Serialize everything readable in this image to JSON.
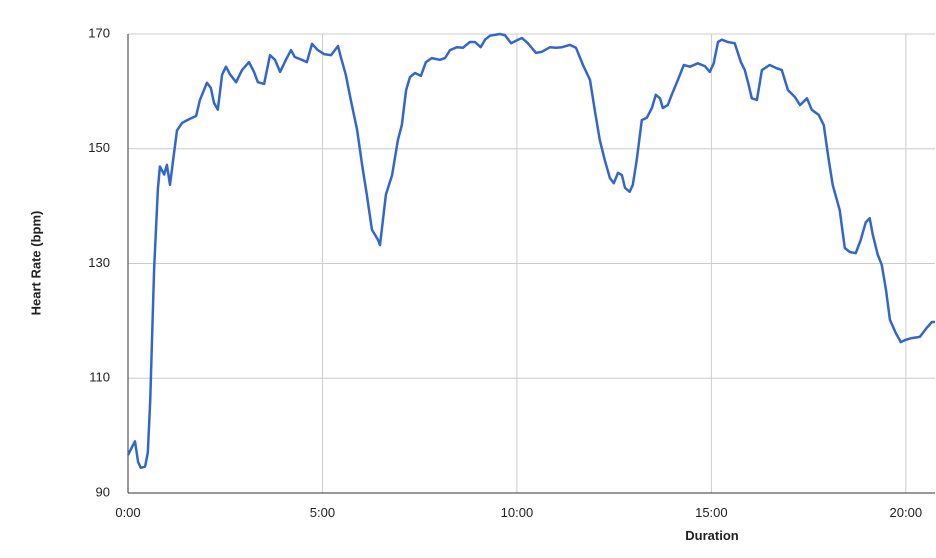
{
  "chart_data": {
    "type": "line",
    "x_label": "Duration",
    "y_label": "Heart Rate (bpm)",
    "color": "#3366cc",
    "grid": true,
    "xlim": [
      0,
      20.75
    ],
    "ylim": [
      90,
      170
    ],
    "xticks": [
      {
        "value": 0,
        "label": "0:00"
      },
      {
        "value": 5,
        "label": "5:00"
      },
      {
        "value": 10,
        "label": "10:00"
      },
      {
        "value": 15,
        "label": "15:00"
      },
      {
        "value": 20,
        "label": "20:00"
      }
    ],
    "yticks": [
      90,
      110,
      130,
      150,
      170
    ],
    "x": [
      0,
      0.13,
      0.18,
      0.26,
      0.33,
      0.44,
      0.51,
      0.57,
      0.67,
      0.77,
      0.82,
      0.93,
      1.0,
      1.08,
      1.16,
      1.26,
      1.39,
      1.59,
      1.75,
      1.85,
      2.03,
      2.13,
      2.21,
      2.31,
      2.42,
      2.52,
      2.62,
      2.78,
      2.93,
      3.11,
      3.24,
      3.34,
      3.5,
      3.65,
      3.78,
      3.91,
      4.06,
      4.19,
      4.29,
      4.47,
      4.6,
      4.73,
      4.88,
      5.04,
      5.22,
      5.4,
      5.48,
      5.6,
      5.73,
      5.89,
      6.02,
      6.14,
      6.27,
      6.43,
      6.48,
      6.63,
      6.79,
      6.94,
      7.04,
      7.15,
      7.25,
      7.38,
      7.53,
      7.66,
      7.81,
      8.02,
      8.15,
      8.28,
      8.46,
      8.61,
      8.79,
      8.92,
      9.07,
      9.18,
      9.31,
      9.56,
      9.69,
      9.85,
      10.03,
      10.13,
      10.28,
      10.49,
      10.64,
      10.85,
      11.0,
      11.16,
      11.36,
      11.52,
      11.7,
      11.88,
      12.0,
      12.13,
      12.26,
      12.39,
      12.49,
      12.6,
      12.7,
      12.78,
      12.9,
      12.98,
      13.08,
      13.21,
      13.34,
      13.47,
      13.57,
      13.68,
      13.75,
      13.88,
      13.98,
      14.14,
      14.29,
      14.45,
      14.65,
      14.83,
      14.96,
      15.06,
      15.17,
      15.27,
      15.42,
      15.6,
      15.76,
      15.86,
      15.96,
      16.04,
      16.17,
      16.3,
      16.5,
      16.66,
      16.81,
      16.97,
      17.15,
      17.28,
      17.46,
      17.58,
      17.76,
      17.89,
      18.0,
      18.12,
      18.3,
      18.43,
      18.56,
      18.71,
      18.84,
      18.97,
      19.07,
      19.15,
      19.28,
      19.38,
      19.49,
      19.59,
      19.74,
      19.87,
      20.0,
      20.15,
      20.36,
      20.54,
      20.67,
      20.75
    ],
    "values": [
      96.6,
      98.4,
      99,
      95.4,
      94.4,
      94.6,
      97,
      106,
      129,
      143,
      146.9,
      145.5,
      147.2,
      143.7,
      148,
      153.2,
      154.5,
      155.2,
      155.7,
      158.5,
      161.5,
      160.6,
      158,
      156.8,
      162.9,
      164.3,
      163,
      161.6,
      163.7,
      165.1,
      163.4,
      161.6,
      161.3,
      166.3,
      165.5,
      163.4,
      165.5,
      167.2,
      166,
      165.5,
      165.1,
      168.3,
      167.2,
      166.5,
      166.3,
      167.9,
      165.8,
      162.9,
      158.5,
      153.3,
      147.2,
      142,
      135.9,
      134.1,
      133.2,
      142,
      145.4,
      151.5,
      154.1,
      160.2,
      162.5,
      163.2,
      162.7,
      165.1,
      165.8,
      165.5,
      165.8,
      167.2,
      167.7,
      167.6,
      168.6,
      168.6,
      167.7,
      169,
      169.7,
      170,
      169.8,
      168.4,
      169,
      169.3,
      168.4,
      166.7,
      166.9,
      167.7,
      167.6,
      167.7,
      168.1,
      167.6,
      164.6,
      162,
      156.8,
      151.5,
      148,
      144.9,
      144,
      145.8,
      145.4,
      143.2,
      142.5,
      143.7,
      148,
      155,
      155.4,
      157.1,
      159.4,
      158.8,
      157.1,
      157.6,
      159.4,
      162,
      164.6,
      164.3,
      164.9,
      164.4,
      163.4,
      164.9,
      168.6,
      169,
      168.6,
      168.4,
      165.1,
      163.7,
      161.1,
      158.8,
      158.5,
      163.7,
      164.6,
      164.1,
      163.7,
      160.2,
      159,
      157.6,
      158.8,
      156.8,
      155.9,
      154.1,
      148.9,
      143.7,
      139.3,
      132.7,
      132,
      131.8,
      134.1,
      137.2,
      137.9,
      135,
      131.5,
      129.8,
      125.4,
      120.2,
      117.9,
      116.3,
      116.7,
      117,
      117.2,
      118.8,
      119.8,
      119.8
    ]
  }
}
